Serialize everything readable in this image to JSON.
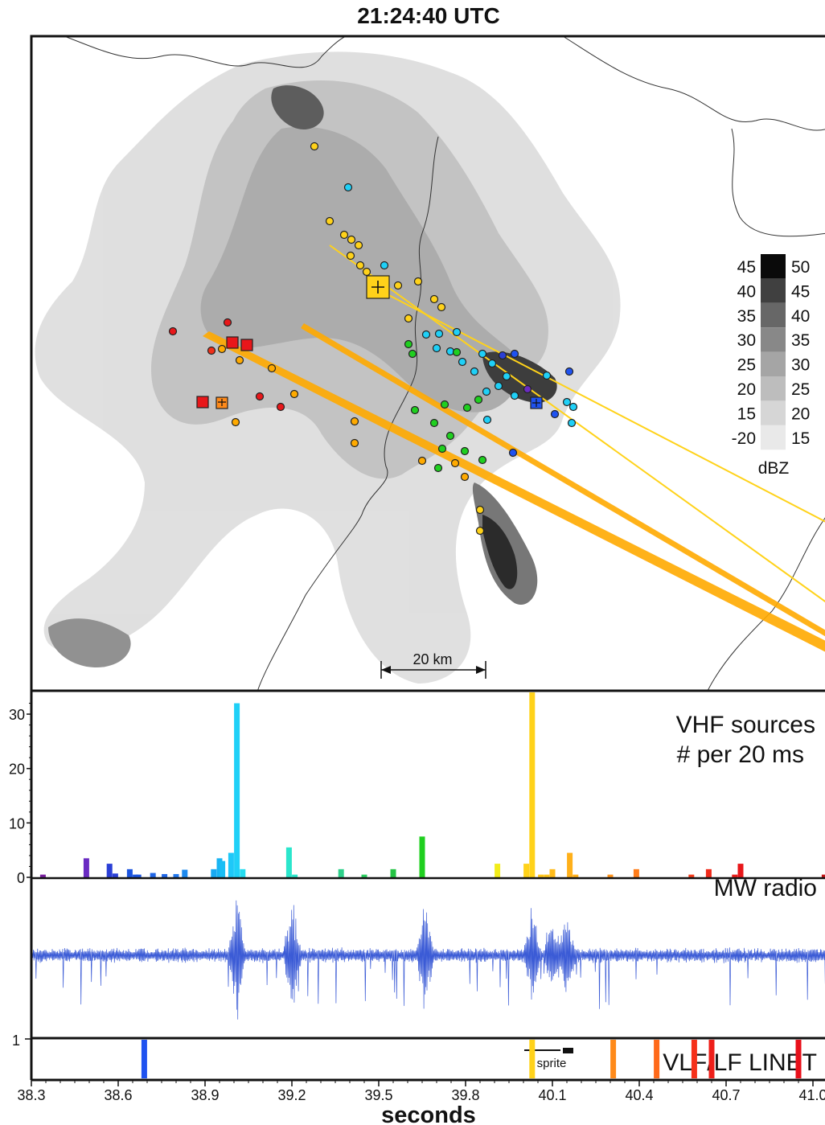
{
  "title": "21:24:40 UTC",
  "colors": {
    "frame": "#111111",
    "waveform": "#3b5bd6",
    "sprite_track": "#ffaa00"
  },
  "map": {
    "scale_label": "20 km",
    "reflectivity_legend": {
      "unit": "dBZ",
      "low_labels": [
        "45",
        "40",
        "35",
        "30",
        "25",
        "20",
        "15",
        "-20"
      ],
      "high_labels": [
        "50",
        "45",
        "40",
        "35",
        "30",
        "25",
        "20",
        "15"
      ],
      "shades": [
        "#0a0a0a",
        "#404040",
        "#676767",
        "#888888",
        "#a5a5a5",
        "#bdbdbd",
        "#d6d6d6",
        "#e9e9e9"
      ]
    }
  },
  "chart_data": [
    {
      "type": "bar",
      "panel": "vhf",
      "title": "VHF sources",
      "subtitle": "# per 20 ms",
      "xlabel": "seconds",
      "xlim": [
        38.3,
        41.05
      ],
      "ylim": [
        0,
        34
      ],
      "yticks": [
        0,
        10,
        20,
        30
      ],
      "bars": [
        {
          "x": 38.34,
          "y": 0.5,
          "color": "#7a1fa0"
        },
        {
          "x": 38.49,
          "y": 3.5,
          "color": "#6a2bc2"
        },
        {
          "x": 38.57,
          "y": 2.5,
          "color": "#2b3fd6"
        },
        {
          "x": 38.59,
          "y": 0.7,
          "color": "#2b3fd6"
        },
        {
          "x": 38.64,
          "y": 1.5,
          "color": "#1c55e0"
        },
        {
          "x": 38.66,
          "y": 0.5,
          "color": "#1c55e0"
        },
        {
          "x": 38.67,
          "y": 0.5,
          "color": "#1c55e0"
        },
        {
          "x": 38.72,
          "y": 0.8,
          "color": "#1f66e6"
        },
        {
          "x": 38.76,
          "y": 0.6,
          "color": "#1f66e6"
        },
        {
          "x": 38.8,
          "y": 0.6,
          "color": "#2077ee"
        },
        {
          "x": 38.83,
          "y": 1.4,
          "color": "#1c8af0"
        },
        {
          "x": 38.93,
          "y": 1.5,
          "color": "#19aaf2"
        },
        {
          "x": 38.95,
          "y": 3.5,
          "color": "#19b4f3"
        },
        {
          "x": 38.96,
          "y": 3.0,
          "color": "#19bef5"
        },
        {
          "x": 38.99,
          "y": 4.5,
          "color": "#1ec8f8"
        },
        {
          "x": 39.01,
          "y": 32.0,
          "color": "#1fd0f7"
        },
        {
          "x": 39.03,
          "y": 1.5,
          "color": "#24dcf0"
        },
        {
          "x": 39.19,
          "y": 5.5,
          "color": "#2ae6cc"
        },
        {
          "x": 39.21,
          "y": 0.5,
          "color": "#2ae6cc"
        },
        {
          "x": 39.37,
          "y": 1.5,
          "color": "#2dd08a"
        },
        {
          "x": 39.45,
          "y": 0.5,
          "color": "#2bcf60"
        },
        {
          "x": 39.55,
          "y": 1.5,
          "color": "#25c445"
        },
        {
          "x": 39.65,
          "y": 7.5,
          "color": "#1fcf1f"
        },
        {
          "x": 39.91,
          "y": 2.5,
          "color": "#f2ec1a"
        },
        {
          "x": 40.01,
          "y": 2.5,
          "color": "#ffd21a"
        },
        {
          "x": 40.03,
          "y": 34.0,
          "color": "#ffd21a"
        },
        {
          "x": 40.06,
          "y": 0.5,
          "color": "#ffc61a"
        },
        {
          "x": 40.08,
          "y": 0.5,
          "color": "#ffc61a"
        },
        {
          "x": 40.1,
          "y": 1.5,
          "color": "#ffbb1a"
        },
        {
          "x": 40.16,
          "y": 4.5,
          "color": "#ffb01a"
        },
        {
          "x": 40.18,
          "y": 0.5,
          "color": "#ffb01a"
        },
        {
          "x": 40.3,
          "y": 0.5,
          "color": "#ff931a"
        },
        {
          "x": 40.39,
          "y": 1.5,
          "color": "#ff7d1a"
        },
        {
          "x": 40.58,
          "y": 0.5,
          "color": "#f53a1a"
        },
        {
          "x": 40.64,
          "y": 1.5,
          "color": "#f02a1a"
        },
        {
          "x": 40.73,
          "y": 0.5,
          "color": "#e81e1a"
        },
        {
          "x": 40.75,
          "y": 2.5,
          "color": "#e8171a"
        },
        {
          "x": 41.04,
          "y": 0.5,
          "color": "#c41414"
        }
      ]
    },
    {
      "type": "line",
      "panel": "mw",
      "title": "MW radio",
      "xlim": [
        38.3,
        41.05
      ],
      "bursts": [
        {
          "x": 39.01,
          "amplitude": 1.0
        },
        {
          "x": 39.2,
          "amplitude": 0.8
        },
        {
          "x": 39.66,
          "amplitude": 0.95
        },
        {
          "x": 40.03,
          "amplitude": 0.8
        },
        {
          "x": 40.1,
          "amplitude": 0.7
        },
        {
          "x": 40.15,
          "amplitude": 0.6
        }
      ]
    },
    {
      "type": "bar",
      "panel": "linet",
      "title": "VLF/LF LINET",
      "ytick": "1",
      "xlabel": "seconds",
      "xticks": [
        "38.3",
        "38.6",
        "38.9",
        "39.2",
        "39.5",
        "39.8",
        "40.1",
        "40.4",
        "40.7",
        "41.0"
      ],
      "xlim": [
        38.3,
        41.05
      ],
      "strokes": [
        {
          "x": 38.69,
          "color": "#1f52f0"
        },
        {
          "x": 40.03,
          "color": "#ffd21a"
        },
        {
          "x": 40.31,
          "color": "#ff8a1a"
        },
        {
          "x": 40.46,
          "color": "#ff6a1a"
        },
        {
          "x": 40.59,
          "color": "#f5301a"
        },
        {
          "x": 40.65,
          "color": "#ee1f1a"
        },
        {
          "x": 40.95,
          "color": "#e8101a"
        }
      ],
      "sprite_label": "sprite"
    }
  ]
}
